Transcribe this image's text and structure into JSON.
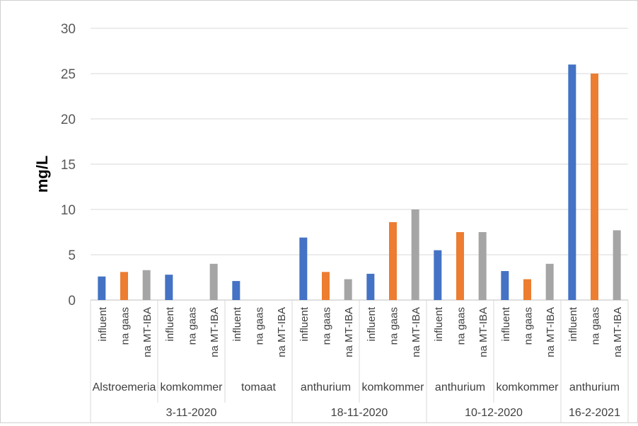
{
  "chart_data": {
    "type": "bar",
    "ylabel": "mg/L",
    "ylim": [
      0,
      30
    ],
    "yticks": [
      0,
      5,
      10,
      15,
      20,
      25,
      30
    ],
    "grid": true,
    "legend": "none",
    "series_colors": {
      "influent": "#4472C4",
      "na gaas": "#ED7D31",
      "na MT-IBA": "#A5A5A5"
    },
    "dates": [
      {
        "label": "3-11-2020",
        "crops": [
          {
            "label": "Alstroemeria",
            "bars": [
              {
                "label": "influent",
                "value": 2.6
              },
              {
                "label": "na gaas",
                "value": 3.1
              },
              {
                "label": "na MT-IBA",
                "value": 3.3
              }
            ]
          },
          {
            "label": "komkommer",
            "bars": [
              {
                "label": "influent",
                "value": 2.8
              },
              {
                "label": "na gaas",
                "value": null
              },
              {
                "label": "na MT-IBA",
                "value": 4.0
              }
            ]
          },
          {
            "label": "tomaat",
            "bars": [
              {
                "label": "influent",
                "value": 2.1
              },
              {
                "label": "na gaas",
                "value": null
              },
              {
                "label": "na MT-IBA",
                "value": null
              }
            ]
          }
        ]
      },
      {
        "label": "18-11-2020",
        "crops": [
          {
            "label": "anthurium",
            "bars": [
              {
                "label": "influent",
                "value": 6.9
              },
              {
                "label": "na gaas",
                "value": 3.1
              },
              {
                "label": "na MT-IBA",
                "value": 2.3
              }
            ]
          },
          {
            "label": "komkommer",
            "bars": [
              {
                "label": "influent",
                "value": 2.9
              },
              {
                "label": "na gaas",
                "value": 8.6
              },
              {
                "label": "na MT-IBA",
                "value": 10.0
              }
            ]
          }
        ]
      },
      {
        "label": "10-12-2020",
        "crops": [
          {
            "label": "anthurium",
            "bars": [
              {
                "label": "influent",
                "value": 5.5
              },
              {
                "label": "na gaas",
                "value": 7.5
              },
              {
                "label": "na MT-IBA",
                "value": 7.5
              }
            ]
          },
          {
            "label": "komkommer",
            "bars": [
              {
                "label": "influent",
                "value": 3.2
              },
              {
                "label": "na gaas",
                "value": 2.3
              },
              {
                "label": "na MT-IBA",
                "value": 4.0
              }
            ]
          }
        ]
      },
      {
        "label": "16-2-2021",
        "crops": [
          {
            "label": "anthurium",
            "bars": [
              {
                "label": "influent",
                "value": 26.0
              },
              {
                "label": "na gaas",
                "value": 25.0
              },
              {
                "label": "na MT-IBA",
                "value": 7.7
              }
            ]
          }
        ]
      }
    ]
  }
}
